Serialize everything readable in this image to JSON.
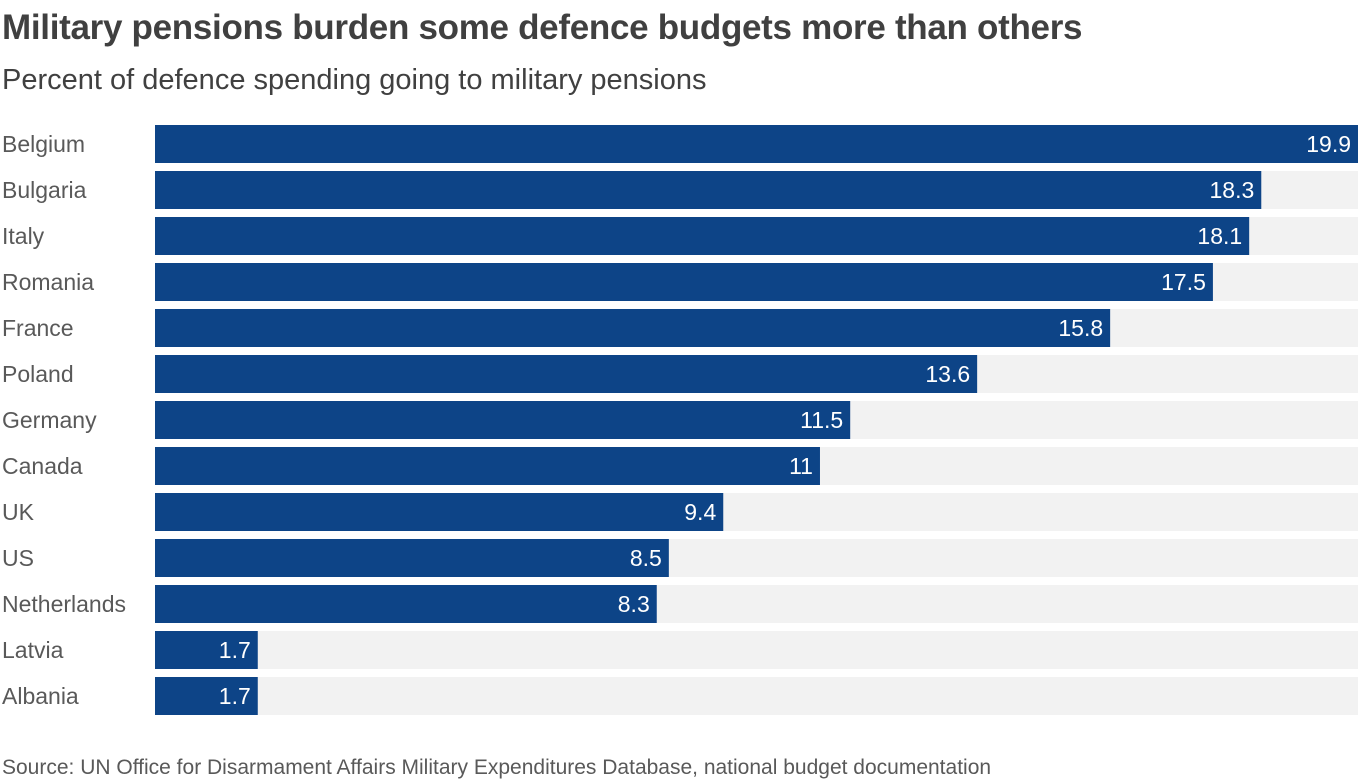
{
  "header": {
    "title": "Military pensions burden some defence budgets more than others",
    "subtitle": "Percent of defence spending going to military pensions"
  },
  "footer": {
    "source": "Source: UN Office for Disarmament Affairs Military Expenditures Database, national budget documentation"
  },
  "colors": {
    "bar": "#0d4487",
    "track": "#f2f2f2",
    "value_text": "#ffffff",
    "label_text": "#595959"
  },
  "chart_data": {
    "type": "bar",
    "orientation": "horizontal",
    "title": "Military pensions burden some defence budgets more than others",
    "subtitle": "Percent of defence spending going to military pensions",
    "xlabel": "",
    "ylabel": "",
    "xlim": [
      0,
      19.9
    ],
    "grid": false,
    "legend": "none",
    "categories": [
      "Belgium",
      "Bulgaria",
      "Italy",
      "Romania",
      "France",
      "Poland",
      "Germany",
      "Canada",
      "UK",
      "US",
      "Netherlands",
      "Latvia",
      "Albania"
    ],
    "values": [
      19.9,
      18.3,
      18.1,
      17.5,
      15.8,
      13.6,
      11.5,
      11,
      9.4,
      8.5,
      8.3,
      1.7,
      1.7
    ],
    "value_labels": [
      "19.9",
      "18.3",
      "18.1",
      "17.5",
      "15.8",
      "13.6",
      "11.5",
      "11",
      "9.4",
      "8.5",
      "8.3",
      "1.7",
      "1.7"
    ]
  }
}
